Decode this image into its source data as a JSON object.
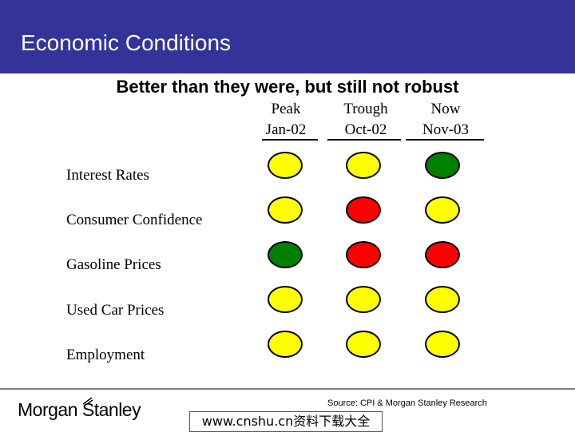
{
  "header": {
    "title": "Economic Conditions",
    "background": "#333399"
  },
  "subtitle": "Better than they were, but still not robust",
  "columns": [
    {
      "line1": "Peak",
      "line2": "Jan-02"
    },
    {
      "line1": "Trough",
      "line2": "Oct-02"
    },
    {
      "line1": "Now",
      "line2": "Nov-03"
    }
  ],
  "colors": {
    "yellow": "#ffff00",
    "red": "#ff0000",
    "green": "#008000"
  },
  "rows": [
    {
      "label": "Interest Rates",
      "lights": [
        "yellow",
        "yellow",
        "green"
      ]
    },
    {
      "label": "Consumer Confidence",
      "lights": [
        "yellow",
        "red",
        "yellow"
      ]
    },
    {
      "label": "Gasoline Prices",
      "lights": [
        "green",
        "red",
        "red"
      ]
    },
    {
      "label": "Used Car Prices",
      "lights": [
        "yellow",
        "yellow",
        "yellow"
      ]
    },
    {
      "label": "Employment",
      "lights": [
        "yellow",
        "yellow",
        "yellow"
      ]
    }
  ],
  "footer": {
    "source": "Source: CPI & Morgan Stanley Research",
    "logo": "Morgan Stanley",
    "watermark": "www.cnshu.cn资料下载大全"
  }
}
